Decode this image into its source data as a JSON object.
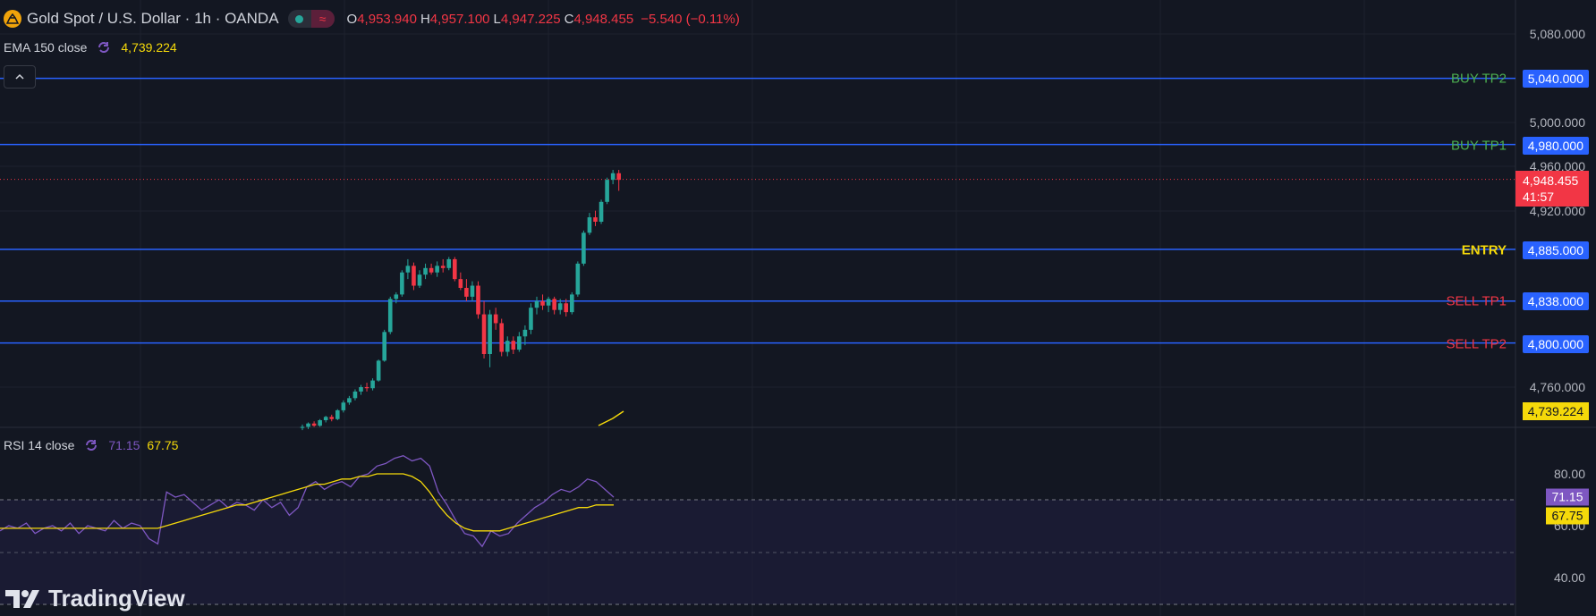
{
  "header": {
    "title": "Gold Spot / U.S. Dollar · 1h · OANDA",
    "ohlc": [
      {
        "key": "O",
        "value": "4,953.940"
      },
      {
        "key": "H",
        "value": "4,957.100"
      },
      {
        "key": "L",
        "value": "4,947.225"
      },
      {
        "key": "C",
        "value": "4,948.455"
      }
    ],
    "change": "−5.540 (−0.11%)",
    "pill_wave_glyph": "≈"
  },
  "ema": {
    "name": "EMA 150 close",
    "value": "4,739.224"
  },
  "rsi": {
    "name": "RSI 14 close",
    "value1": "71.15",
    "value2": "67.75"
  },
  "price_axis": {
    "ticks": [
      "5,080.000",
      "5,000.000",
      "4,960.000",
      "4,920.000",
      "4,760.000"
    ],
    "current_price": "4,948.455",
    "countdown": "41:57",
    "ema_tag": "4,739.224"
  },
  "levels": [
    {
      "name": "BUY TP2",
      "value": "5,040.000",
      "color": "#4caf50"
    },
    {
      "name": "BUY TP1",
      "value": "4,980.000",
      "color": "#4caf50"
    },
    {
      "name": "ENTRY",
      "value": "4,885.000",
      "color": "#f5d90a"
    },
    {
      "name": "SELL TP1",
      "value": "4,838.000",
      "color": "#f23645"
    },
    {
      "name": "SELL TP2",
      "value": "4,800.000",
      "color": "#f23645"
    }
  ],
  "rsi_axis": {
    "ticks": [
      "80.00",
      "60.00",
      "40.00"
    ],
    "rsi_tag": "71.15",
    "ma_tag": "67.75"
  },
  "colors": {
    "background": "#131722",
    "up": "#26a69a",
    "down": "#f23645",
    "level_line": "#2962ff",
    "ema": "#f5d90a",
    "rsi": "#7e57c2"
  },
  "icons": [
    "gold-coin-icon",
    "chevron-up-icon",
    "indicator-loop-icon",
    "tradingview-logo-icon"
  ],
  "watermark": "TradingView"
}
